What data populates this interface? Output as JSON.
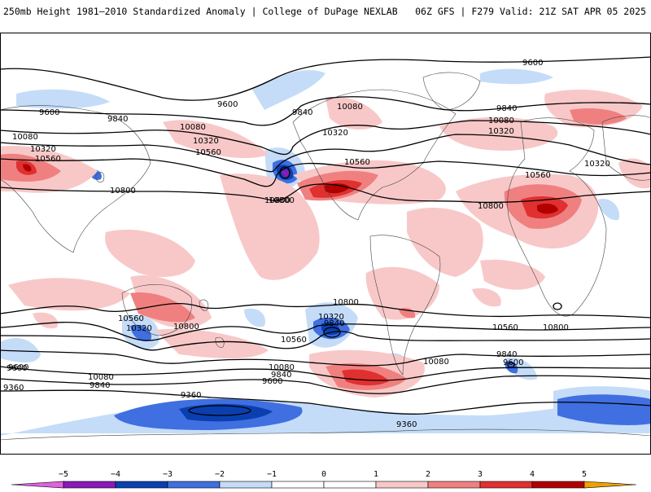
{
  "header": {
    "left_title": "250mb Height 1981–2010 Standardized Anomaly | College of DuPage NEXLAB",
    "right_title": "06Z GFS | F279 Valid: 21Z SAT APR 05 2025"
  },
  "colors": {
    "neg5": "#e060e0",
    "neg4": "#8a1ab8",
    "neg3": "#0a3fb0",
    "neg2": "#3f6fe0",
    "neg1": "#c4dcf8",
    "zero": "#ffffff",
    "pos1": "#f8c8c8",
    "pos2": "#f08080",
    "pos3": "#e03030",
    "pos4": "#b00000",
    "pos5": "#f0a000"
  },
  "colorbar": {
    "ticks": [
      "−5",
      "−4",
      "−3",
      "−2",
      "−1",
      "0",
      "1",
      "2",
      "3",
      "4",
      "5"
    ]
  },
  "contours": {
    "labels": [
      "9600",
      "9600",
      "9600",
      "9840",
      "9840",
      "10080",
      "10080",
      "10320",
      "10320",
      "10320",
      "10560",
      "10560",
      "10560",
      "10800",
      "10800",
      "10800",
      "9840",
      "10080",
      "10320",
      "10800",
      "10080",
      "9840",
      "9600",
      "9840",
      "10320",
      "10560",
      "10800",
      "10560",
      "10800",
      "10320",
      "10080",
      "9840",
      "9600",
      "9600",
      "10080",
      "9840",
      "9360",
      "9360",
      "9360",
      "10560",
      "10320",
      "10800",
      "10560",
      "10080",
      "9600"
    ]
  }
}
